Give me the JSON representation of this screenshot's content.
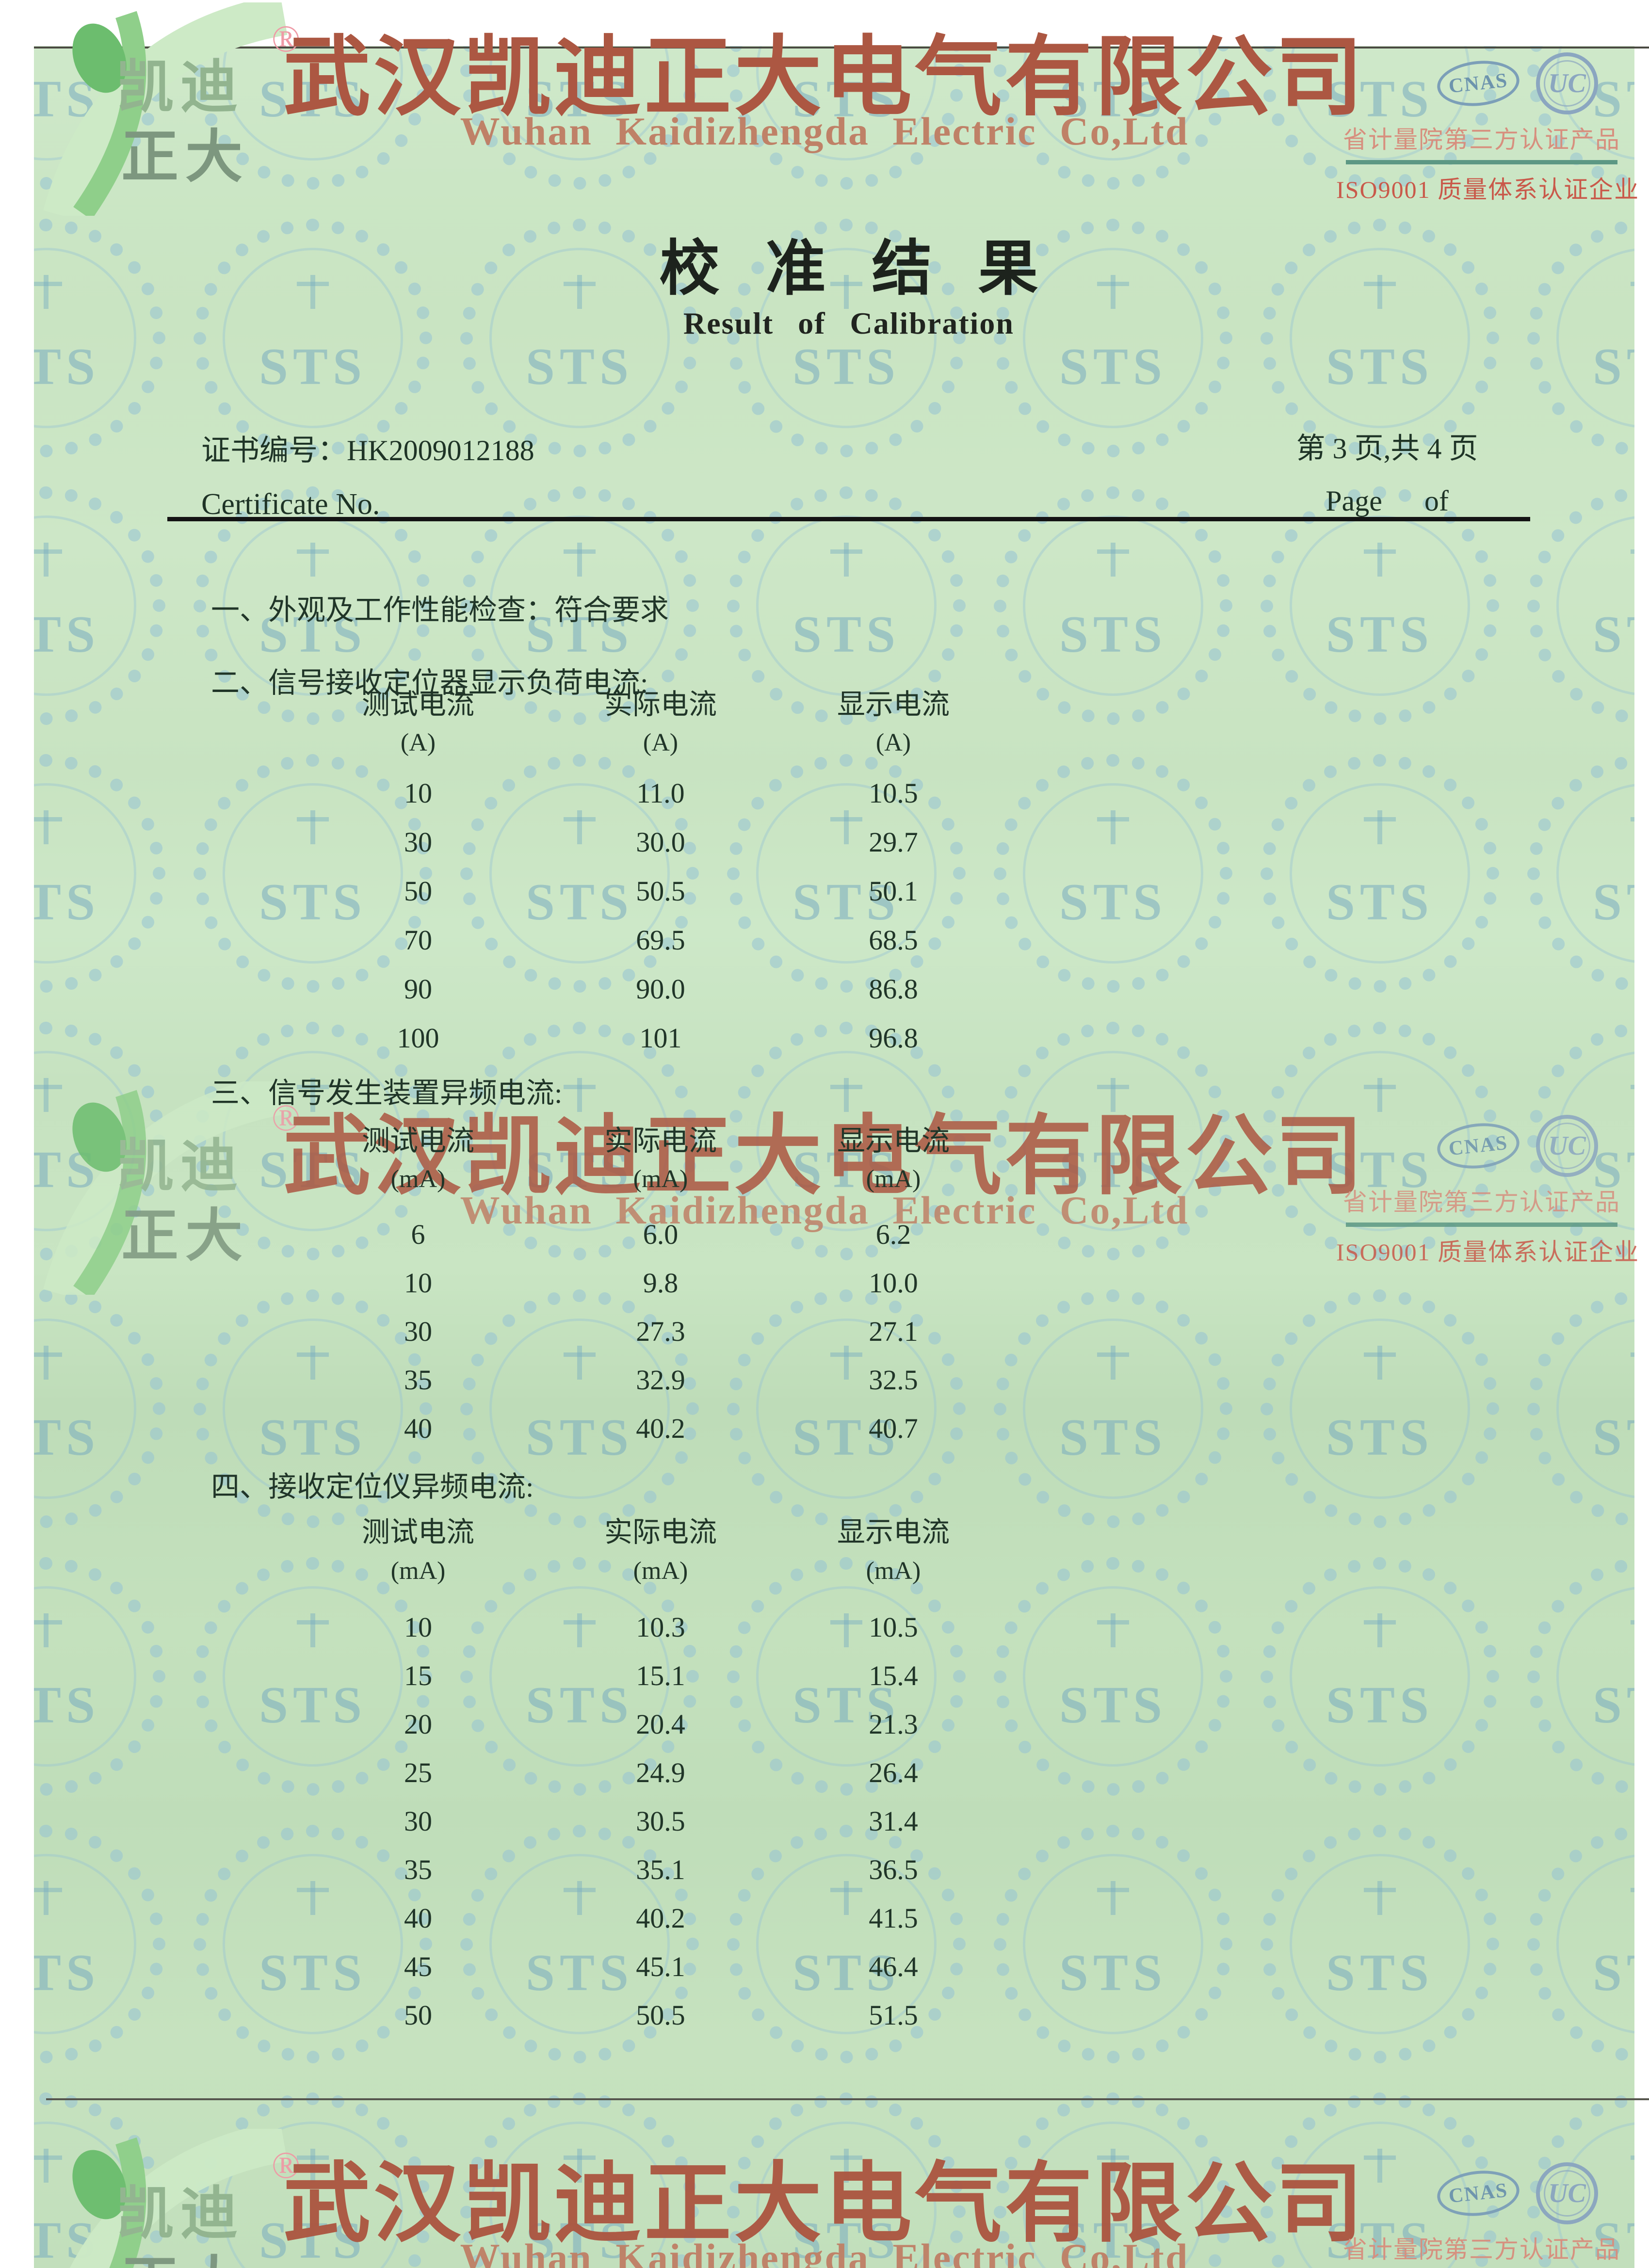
{
  "letterhead": {
    "logo": {
      "cn1": "凯迪",
      "cn2": "正大",
      "reg": "®"
    },
    "company_cn": "武汉凯迪正大电气有限公司",
    "company_en": "Wuhan Kaidizhengda Electric Co,Ltd",
    "badges": {
      "cnas": "CNAS",
      "ucc": "UC",
      "line1": "省计量院第三方认证产品",
      "line2": "ISO9001 质量体系认证企业"
    }
  },
  "doc_title": {
    "cn": "校准结果",
    "en": "Result of Calibration"
  },
  "cert": {
    "label_cn": "证书编号：",
    "number": "HK2009012188",
    "label_en": "Certificate No.",
    "page_cn": "第 3 页,共 4 页",
    "page_en_1": "Page",
    "page_en_2": "of"
  },
  "sections": {
    "s1": "一、外观及工作性能检查：符合要求",
    "s2": "二、信号接收定位器显示负荷电流:",
    "s3": "三、信号发生装置异频电流:",
    "s4": "四、接收定位仪异频电流:"
  },
  "tables": [
    {
      "headers": [
        "测试电流",
        "实际电流",
        "显示电流"
      ],
      "units": [
        "(A)",
        "(A)",
        "(A)"
      ],
      "rows": [
        [
          "10",
          "11.0",
          "10.5"
        ],
        [
          "30",
          "30.0",
          "29.7"
        ],
        [
          "50",
          "50.5",
          "50.1"
        ],
        [
          "70",
          "69.5",
          "68.5"
        ],
        [
          "90",
          "90.0",
          "86.8"
        ],
        [
          "100",
          "101",
          "96.8"
        ]
      ]
    },
    {
      "headers": [
        "测试电流",
        "实际电流",
        "显示电流"
      ],
      "units": [
        "(mA)",
        "(mA)",
        "(mA)"
      ],
      "rows": [
        [
          "6",
          "6.0",
          "6.2"
        ],
        [
          "10",
          "9.8",
          "10.0"
        ],
        [
          "30",
          "27.3",
          "27.1"
        ],
        [
          "35",
          "32.9",
          "32.5"
        ],
        [
          "40",
          "40.2",
          "40.7"
        ]
      ]
    },
    {
      "headers": [
        "测试电流",
        "实际电流",
        "显示电流"
      ],
      "units": [
        "(mA)",
        "(mA)",
        "(mA)"
      ],
      "rows": [
        [
          "10",
          "10.3",
          "10.5"
        ],
        [
          "15",
          "15.1",
          "15.4"
        ],
        [
          "20",
          "20.4",
          "21.3"
        ],
        [
          "25",
          "24.9",
          "26.4"
        ],
        [
          "30",
          "30.5",
          "31.4"
        ],
        [
          "35",
          "35.1",
          "36.5"
        ],
        [
          "40",
          "40.2",
          "41.5"
        ],
        [
          "45",
          "45.1",
          "46.4"
        ],
        [
          "50",
          "50.5",
          "51.5"
        ]
      ]
    }
  ],
  "watermark": {
    "seal_text": "STS"
  },
  "colors": {
    "page_green": "#c8e4c2",
    "brand_red": "#ac5742",
    "company_en_red": "#bf8167",
    "badge_pink": "#d78f7e",
    "iso_red": "#c9594a",
    "badge_blue": "#7c9fb8",
    "seal_blue": "#96c4d4",
    "rule_teal": "#5d9884",
    "ink": "#22392b"
  }
}
